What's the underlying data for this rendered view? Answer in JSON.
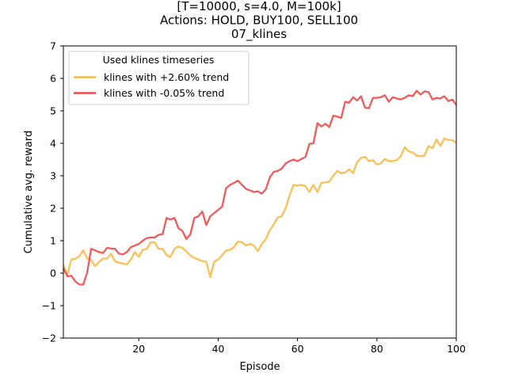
{
  "chart_data": {
    "type": "line",
    "title_lines": [
      "[T=10000, s=4.0, M=100k]",
      "Actions: HOLD, BUY100, SELL100",
      "07_klines"
    ],
    "xlabel": "Episode",
    "ylabel": "Cumulative avg. reward",
    "xlim": [
      1,
      100
    ],
    "ylim": [
      -2,
      7
    ],
    "xticks": [
      20,
      40,
      60,
      80,
      100
    ],
    "yticks": [
      -2,
      -1,
      0,
      1,
      2,
      3,
      4,
      5,
      6,
      7
    ],
    "grid": false,
    "legend": {
      "title": "Used klines timeseries",
      "placement": "upper-left"
    },
    "x": [
      1,
      2,
      3,
      4,
      5,
      6,
      7,
      8,
      9,
      10,
      11,
      12,
      13,
      14,
      15,
      16,
      17,
      18,
      19,
      20,
      21,
      22,
      23,
      24,
      25,
      26,
      27,
      28,
      29,
      30,
      31,
      32,
      33,
      34,
      35,
      36,
      37,
      38,
      39,
      40,
      41,
      42,
      43,
      44,
      45,
      46,
      47,
      48,
      49,
      50,
      51,
      52,
      53,
      54,
      55,
      56,
      57,
      58,
      59,
      60,
      61,
      62,
      63,
      64,
      65,
      66,
      67,
      68,
      69,
      70,
      71,
      72,
      73,
      74,
      75,
      76,
      77,
      78,
      79,
      80,
      81,
      82,
      83,
      84,
      85,
      86,
      87,
      88,
      89,
      90,
      91,
      92,
      93,
      94,
      95,
      96,
      97,
      98,
      99,
      100
    ],
    "series": [
      {
        "name": "klines with +2.60% trend",
        "color": "#fbb844",
        "values": [
          0.25,
          -0.05,
          0.42,
          0.44,
          0.52,
          0.7,
          0.45,
          0.4,
          0.22,
          0.35,
          0.45,
          0.45,
          0.6,
          0.37,
          0.32,
          0.3,
          0.27,
          0.42,
          0.65,
          0.5,
          0.72,
          0.75,
          0.95,
          0.95,
          0.75,
          0.75,
          0.55,
          0.5,
          0.75,
          0.82,
          0.78,
          0.66,
          0.55,
          0.47,
          0.42,
          0.37,
          0.35,
          -0.12,
          0.35,
          0.42,
          0.55,
          0.7,
          0.72,
          0.8,
          0.98,
          0.95,
          0.85,
          0.9,
          0.85,
          0.68,
          0.9,
          1.05,
          1.32,
          1.5,
          1.72,
          1.75,
          2.0,
          2.4,
          2.72,
          2.7,
          2.72,
          2.68,
          2.5,
          2.72,
          2.5,
          2.78,
          2.8,
          2.82,
          3.0,
          3.15,
          3.08,
          3.1,
          3.2,
          3.08,
          3.42,
          3.55,
          3.58,
          3.45,
          3.48,
          3.35,
          3.38,
          3.52,
          3.45,
          3.45,
          3.48,
          3.6,
          3.88,
          3.75,
          3.72,
          3.62,
          3.6,
          3.62,
          3.92,
          3.85,
          4.12,
          3.92,
          4.15,
          4.1,
          4.1,
          4.02
        ]
      },
      {
        "name": "klines with -0.05% trend",
        "color": "#f04848",
        "values": [
          0.15,
          -0.1,
          -0.08,
          -0.25,
          -0.35,
          -0.35,
          0.02,
          0.75,
          0.7,
          0.65,
          0.62,
          0.78,
          0.76,
          0.75,
          0.6,
          0.58,
          0.65,
          0.8,
          0.85,
          0.9,
          1.0,
          1.08,
          1.1,
          1.1,
          1.18,
          1.2,
          1.7,
          1.65,
          1.7,
          1.38,
          1.3,
          1.05,
          1.2,
          1.7,
          1.75,
          1.9,
          1.48,
          1.75,
          1.85,
          1.95,
          2.05,
          2.62,
          2.72,
          2.78,
          2.85,
          2.72,
          2.6,
          2.55,
          2.5,
          2.52,
          2.45,
          2.58,
          2.95,
          3.12,
          3.15,
          3.22,
          3.38,
          3.45,
          3.5,
          3.45,
          3.52,
          3.58,
          3.98,
          4.0,
          4.62,
          4.52,
          4.6,
          4.5,
          4.85,
          4.82,
          4.78,
          5.28,
          5.25,
          5.42,
          5.32,
          5.45,
          5.1,
          5.08,
          5.4,
          5.4,
          5.42,
          5.48,
          5.28,
          5.42,
          5.38,
          5.35,
          5.4,
          5.48,
          5.45,
          5.62,
          5.5,
          5.6,
          5.58,
          5.35,
          5.4,
          5.38,
          5.45,
          5.3,
          5.35,
          5.18
        ]
      }
    ]
  }
}
